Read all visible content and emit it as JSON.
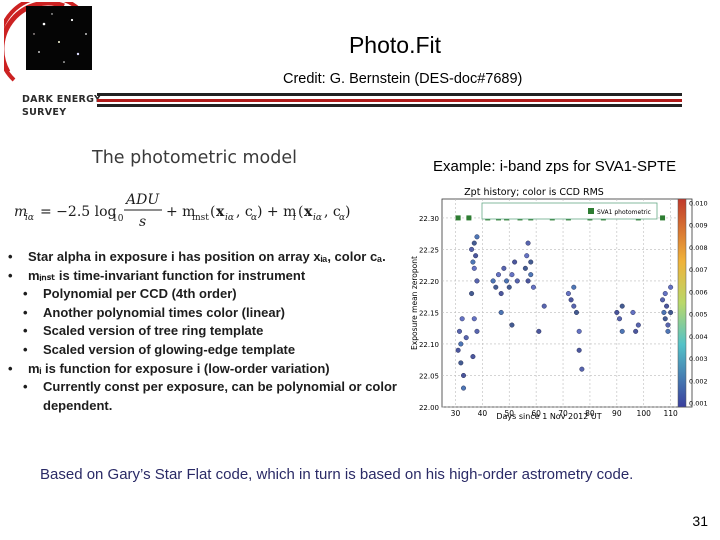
{
  "header": {
    "title": "Photo.Fit",
    "credit": "Credit:  G. Bernstein (DES-doc#7689)",
    "logo_line1": "DARK ENERGY",
    "logo_line2": "SURVEY"
  },
  "left": {
    "section_title": "The photometric model",
    "bullets": [
      {
        "level": 1,
        "text": "Star alpha in exposure i has position on array xᵢₐ, color cₐ."
      },
      {
        "level": 1,
        "text": "mᵢₙₛₜ is time-invariant function for instrument"
      },
      {
        "level": 2,
        "text": "Polynomial per CCD (4th order)"
      },
      {
        "level": 2,
        "text": "Another polynomial times color (linear)"
      },
      {
        "level": 2,
        "text": "Scaled version of tree ring template"
      },
      {
        "level": 2,
        "text": "Scaled version of glowing-edge template"
      },
      {
        "level": 1,
        "text": "mᵢ is function for exposure i (low-order variation)"
      },
      {
        "level": 2,
        "text": "Currently const per exposure, can be polynomial or color"
      },
      {
        "level": 0,
        "text": "dependent."
      }
    ]
  },
  "right": {
    "example_label": "Example: i-band zps for SVA1-SPTE"
  },
  "footer": {
    "text": "Based on Gary’s Star Flat code, which in turn is based on his high-order astrometry code.",
    "page_number": "31"
  },
  "colors": {
    "rule_dark": "#222222",
    "rule_red": "#b01a1a",
    "footer_text": "#2a2a66"
  },
  "chart_data": {
    "type": "scatter",
    "title": "Zpt history; color is CCD RMS",
    "xlabel": "Days since 1 Nov 2012 UT",
    "ylabel": "Exposure mean zeropont",
    "xlim": [
      25,
      112
    ],
    "ylim": [
      22.0,
      22.33
    ],
    "xticks": [
      "30",
      "40",
      "50",
      "60",
      "70",
      "80",
      "90",
      "100",
      "110"
    ],
    "yticks": [
      "22.30",
      "22.25",
      "22.20",
      "22.15",
      "22.10",
      "22.05",
      "22.00"
    ],
    "legend": "SVA1 photometric",
    "colorbar_ticks": [
      "0.010",
      "0.009",
      "0.008",
      "0.007",
      "0.006",
      "0.005",
      "0.004",
      "0.003",
      "0.002",
      "0.001"
    ],
    "photometric_flags": {
      "y": 22.3,
      "x": [
        31,
        35,
        42,
        46,
        49,
        54,
        58,
        66,
        72,
        80,
        85,
        98,
        107
      ]
    },
    "series": [
      {
        "values": [
          [
            31,
            22.09
          ],
          [
            31.5,
            22.12
          ],
          [
            32,
            22.1
          ],
          [
            32,
            22.07
          ],
          [
            32.5,
            22.14
          ],
          [
            33,
            22.05
          ],
          [
            34,
            22.11
          ],
          [
            33,
            22.03
          ]
        ]
      },
      {
        "values": [
          [
            36,
            22.25
          ],
          [
            36.5,
            22.23
          ],
          [
            37,
            22.26
          ],
          [
            37,
            22.22
          ],
          [
            37.5,
            22.24
          ],
          [
            38,
            22.2
          ],
          [
            38,
            22.27
          ],
          [
            36,
            22.18
          ],
          [
            37,
            22.14
          ],
          [
            36.5,
            22.08
          ],
          [
            38,
            22.12
          ]
        ]
      },
      {
        "values": [
          [
            44,
            22.2
          ],
          [
            45,
            22.19
          ],
          [
            46,
            22.21
          ],
          [
            47,
            22.18
          ],
          [
            48,
            22.22
          ],
          [
            49,
            22.2
          ],
          [
            50,
            22.19
          ],
          [
            51,
            22.21
          ],
          [
            52,
            22.23
          ],
          [
            53,
            22.2
          ],
          [
            47,
            22.15
          ],
          [
            51,
            22.13
          ]
        ]
      },
      {
        "values": [
          [
            56,
            22.22
          ],
          [
            56.5,
            22.24
          ],
          [
            57,
            22.2
          ],
          [
            57,
            22.26
          ],
          [
            58,
            22.21
          ],
          [
            58,
            22.23
          ],
          [
            59,
            22.19
          ],
          [
            61,
            22.12
          ],
          [
            63,
            22.16
          ]
        ]
      },
      {
        "values": [
          [
            72,
            22.18
          ],
          [
            73,
            22.17
          ],
          [
            74,
            22.16
          ],
          [
            74,
            22.19
          ],
          [
            75,
            22.15
          ],
          [
            76,
            22.12
          ],
          [
            76,
            22.09
          ],
          [
            77,
            22.06
          ]
        ]
      },
      {
        "values": [
          [
            90,
            22.15
          ],
          [
            91,
            22.14
          ],
          [
            92,
            22.12
          ],
          [
            92,
            22.16
          ],
          [
            96,
            22.15
          ],
          [
            97,
            22.12
          ],
          [
            98,
            22.13
          ]
        ]
      },
      {
        "values": [
          [
            107,
            22.17
          ],
          [
            107.5,
            22.15
          ],
          [
            108,
            22.14
          ],
          [
            108,
            22.18
          ],
          [
            108.5,
            22.16
          ],
          [
            109,
            22.13
          ],
          [
            109,
            22.12
          ],
          [
            110,
            22.15
          ],
          [
            110,
            22.19
          ]
        ]
      }
    ]
  }
}
